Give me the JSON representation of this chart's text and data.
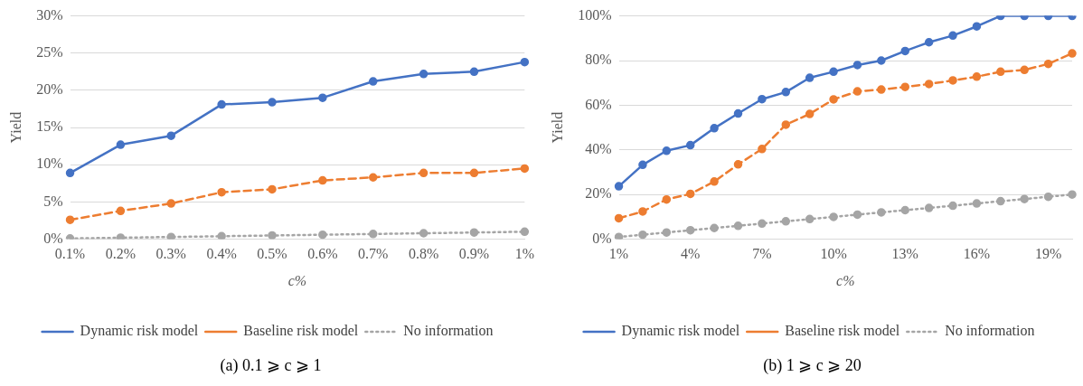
{
  "chart_data": [
    {
      "type": "line",
      "title": "(a)  0.1 ⩾ c ⩾ 1",
      "xlabel": "c%",
      "ylabel": "Yield",
      "categories": [
        "0.1%",
        "0.2%",
        "0.3%",
        "0.4%",
        "0.5%",
        "0.6%",
        "0.7%",
        "0.8%",
        "0.9%",
        "1%"
      ],
      "series": [
        {
          "name": "Dynamic risk model",
          "color": "#4472c4",
          "line_style": "solid",
          "values": [
            8.9,
            12.7,
            13.9,
            18.1,
            18.4,
            19.0,
            21.2,
            22.2,
            22.5,
            23.8
          ]
        },
        {
          "name": "Baseline risk model",
          "color": "#ed7d31",
          "line_style": "dashed",
          "values": [
            2.6,
            3.8,
            4.8,
            6.3,
            6.7,
            7.9,
            8.3,
            8.9,
            8.9,
            9.5
          ]
        },
        {
          "name": "No information",
          "color": "#a5a5a5",
          "line_style": "dotted",
          "values": [
            0.1,
            0.2,
            0.3,
            0.4,
            0.5,
            0.6,
            0.7,
            0.8,
            0.9,
            1.0
          ]
        }
      ],
      "ylim": [
        0,
        30
      ],
      "yticks": [
        {
          "value": 0,
          "label": "0%"
        },
        {
          "value": 5,
          "label": "5%"
        },
        {
          "value": 10,
          "label": "10%"
        },
        {
          "value": 15,
          "label": "15%"
        },
        {
          "value": 20,
          "label": "20%"
        },
        {
          "value": 25,
          "label": "25%"
        },
        {
          "value": 30,
          "label": "30%"
        }
      ],
      "grid": "y",
      "legend": "bottom",
      "marker": "circle"
    },
    {
      "type": "line",
      "title": "(b)  1 ⩾ c ⩾ 20",
      "xlabel": "c%",
      "ylabel": "Yield",
      "categories": [
        "1%",
        null,
        null,
        "4%",
        null,
        null,
        "7%",
        null,
        null,
        "10%",
        null,
        null,
        "13%",
        null,
        null,
        "16%",
        null,
        null,
        "19%",
        null
      ],
      "series": [
        {
          "name": "Dynamic risk model",
          "color": "#4472c4",
          "line_style": "solid",
          "values": [
            23.7,
            33.3,
            39.6,
            42.1,
            49.7,
            56.3,
            62.7,
            65.9,
            72.3,
            75.0,
            78.0,
            80.0,
            84.3,
            88.2,
            91.2,
            95.3,
            100,
            100,
            100,
            100
          ]
        },
        {
          "name": "Baseline risk model",
          "color": "#ed7d31",
          "line_style": "dashed",
          "values": [
            9.4,
            12.4,
            17.8,
            20.3,
            25.8,
            33.5,
            40.4,
            51.3,
            56.1,
            62.6,
            66.2,
            67.0,
            68.2,
            69.5,
            71.1,
            72.8,
            75.0,
            75.8,
            78.5,
            83.2
          ]
        },
        {
          "name": "No information",
          "color": "#a5a5a5",
          "line_style": "dotted",
          "values": [
            1,
            2,
            3,
            4,
            5,
            6,
            7,
            8,
            9,
            10,
            11,
            12,
            13,
            14,
            15,
            16,
            17,
            18,
            19,
            20
          ]
        }
      ],
      "ylim": [
        0,
        100
      ],
      "yticks": [
        {
          "value": 0,
          "label": "0%"
        },
        {
          "value": 20,
          "label": "20%"
        },
        {
          "value": 40,
          "label": "40%"
        },
        {
          "value": 60,
          "label": "60%"
        },
        {
          "value": 80,
          "label": "80%"
        },
        {
          "value": 100,
          "label": "100%"
        }
      ],
      "grid": "y",
      "legend": "bottom",
      "marker": "circle"
    }
  ]
}
